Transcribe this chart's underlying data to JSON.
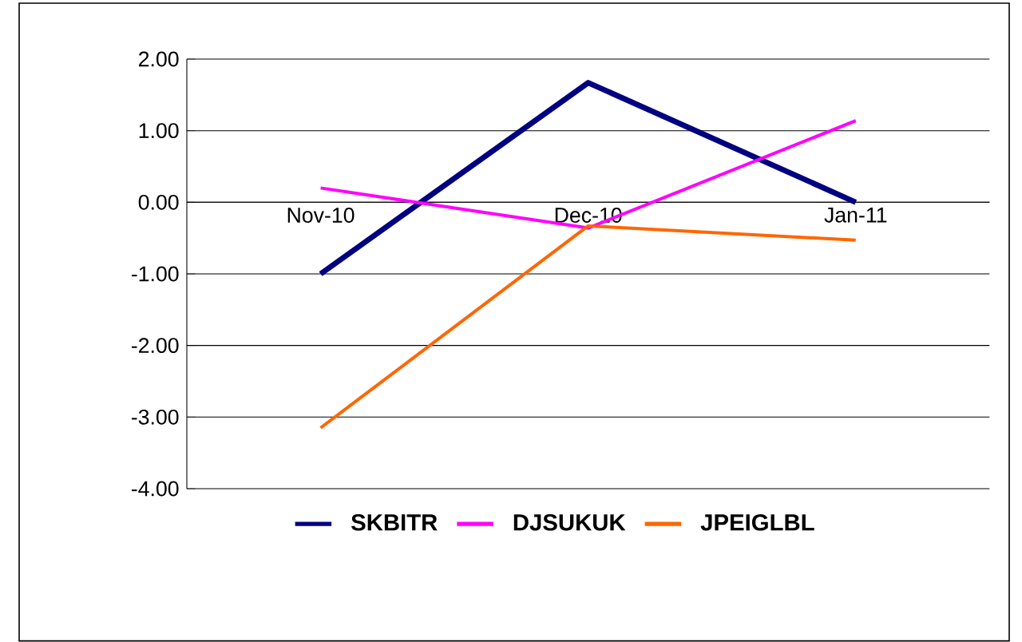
{
  "chart_data": {
    "type": "line",
    "categories": [
      "Nov-10",
      "Dec-10",
      "Jan-11"
    ],
    "series": [
      {
        "name": "SKBITR",
        "color": "#000080",
        "values": [
          -1.0,
          1.67,
          0.0
        ]
      },
      {
        "name": "DJSUKUK",
        "color": "#ff00ff",
        "values": [
          0.2,
          -0.36,
          1.14
        ]
      },
      {
        "name": "JPEIGLBL",
        "color": "#ff6600",
        "values": [
          -3.15,
          -0.33,
          -0.53
        ]
      }
    ],
    "ylim": [
      -4,
      2
    ],
    "yticks": [
      {
        "value": -4,
        "label": "-4.00"
      },
      {
        "value": -3,
        "label": "-3.00"
      },
      {
        "value": -2,
        "label": "-2.00"
      },
      {
        "value": -1,
        "label": "-1.00"
      },
      {
        "value": 0,
        "label": "0.00"
      },
      {
        "value": 1,
        "label": "1.00"
      },
      {
        "value": 2,
        "label": "2.00"
      }
    ],
    "grid": "y",
    "legend": "bottom",
    "marker": "none",
    "line_style": "solid"
  }
}
